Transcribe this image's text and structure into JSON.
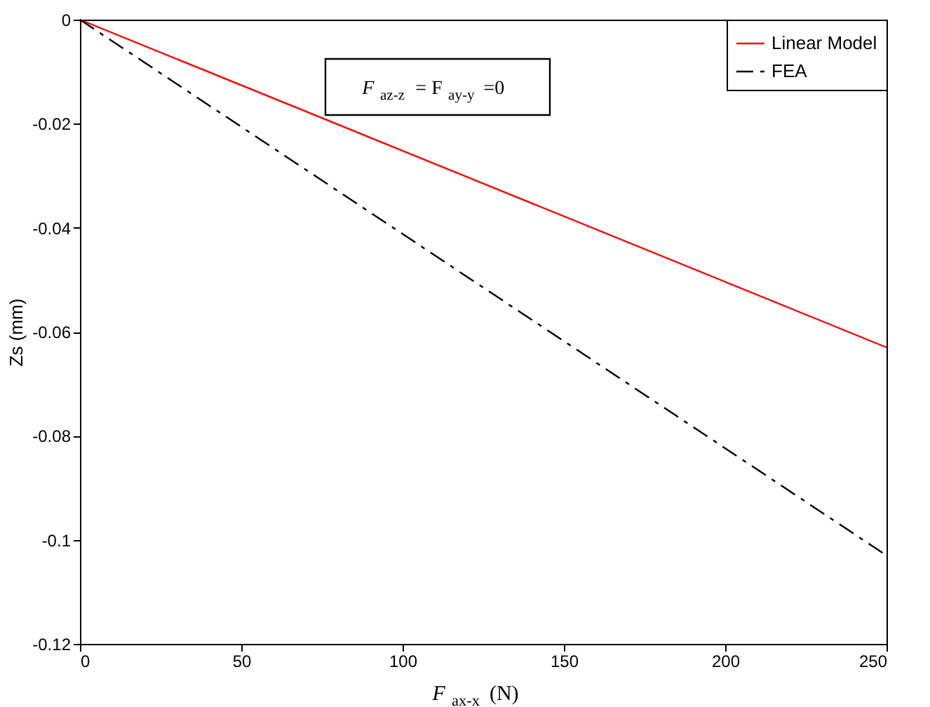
{
  "chart_data": {
    "type": "line",
    "xlabel": "F$_{ax-x}$ (N)",
    "ylabel": "Zs (mm)",
    "x": [
      0,
      250
    ],
    "series": [
      {
        "name": "Linear Model",
        "color": "#ff0000",
        "values": [
          0,
          -0.063
        ],
        "line_style": "solid"
      },
      {
        "name": "FEA",
        "color": "#000000",
        "values": [
          0,
          -0.103
        ],
        "line_style": "dashed"
      }
    ],
    "xlim": [
      0,
      250
    ],
    "xticks": [
      0,
      50,
      100,
      150,
      200,
      250
    ],
    "ylim": [
      -0.12,
      0
    ],
    "yticks": [
      -0.12,
      -0.1,
      -0.08,
      -0.06,
      -0.04,
      -0.02,
      0
    ],
    "grid": false,
    "legend": "top right",
    "marker": "none",
    "annotations": [
      "F$_{az-z}$= F$_{ay-y}$ =0"
    ]
  }
}
